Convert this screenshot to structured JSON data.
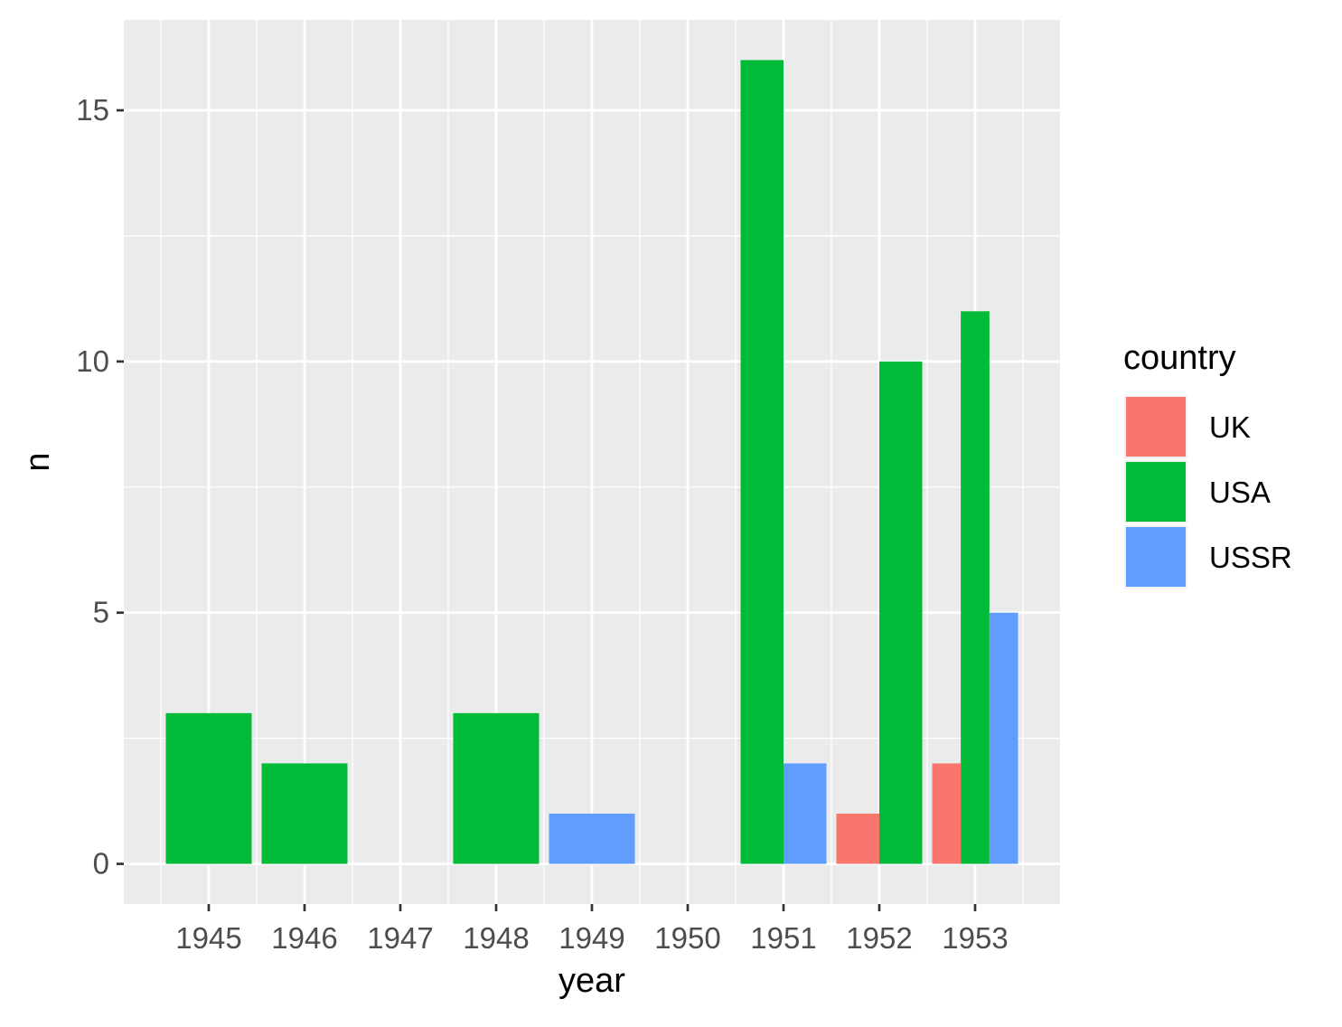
{
  "chart_data": {
    "type": "bar",
    "title": "",
    "xlabel": "year",
    "ylabel": "n",
    "categories": [
      "1945",
      "1946",
      "1947",
      "1948",
      "1949",
      "1950",
      "1951",
      "1952",
      "1953"
    ],
    "series": [
      {
        "name": "UK",
        "color": "#F8766D",
        "values": [
          0,
          0,
          0,
          0,
          0,
          0,
          0,
          1,
          2
        ]
      },
      {
        "name": "USA",
        "color": "#00BA38",
        "values": [
          3,
          2,
          0,
          3,
          0,
          0,
          16,
          10,
          11
        ]
      },
      {
        "name": "USSR",
        "color": "#619CFF",
        "values": [
          0,
          0,
          0,
          0,
          1,
          0,
          2,
          0,
          5
        ]
      }
    ],
    "y_ticks": [
      0,
      5,
      10,
      15
    ],
    "y_tick_labels": [
      "0",
      "5",
      "10",
      "15"
    ],
    "ylim": [
      -0.8,
      16.8
    ],
    "grid": true,
    "legend": {
      "title": "country",
      "position": "right"
    },
    "colors": {
      "panel": "#EBEBEB",
      "grid": "#FFFFFF",
      "tick": "#333333",
      "tick_label": "#4D4D4D"
    }
  }
}
